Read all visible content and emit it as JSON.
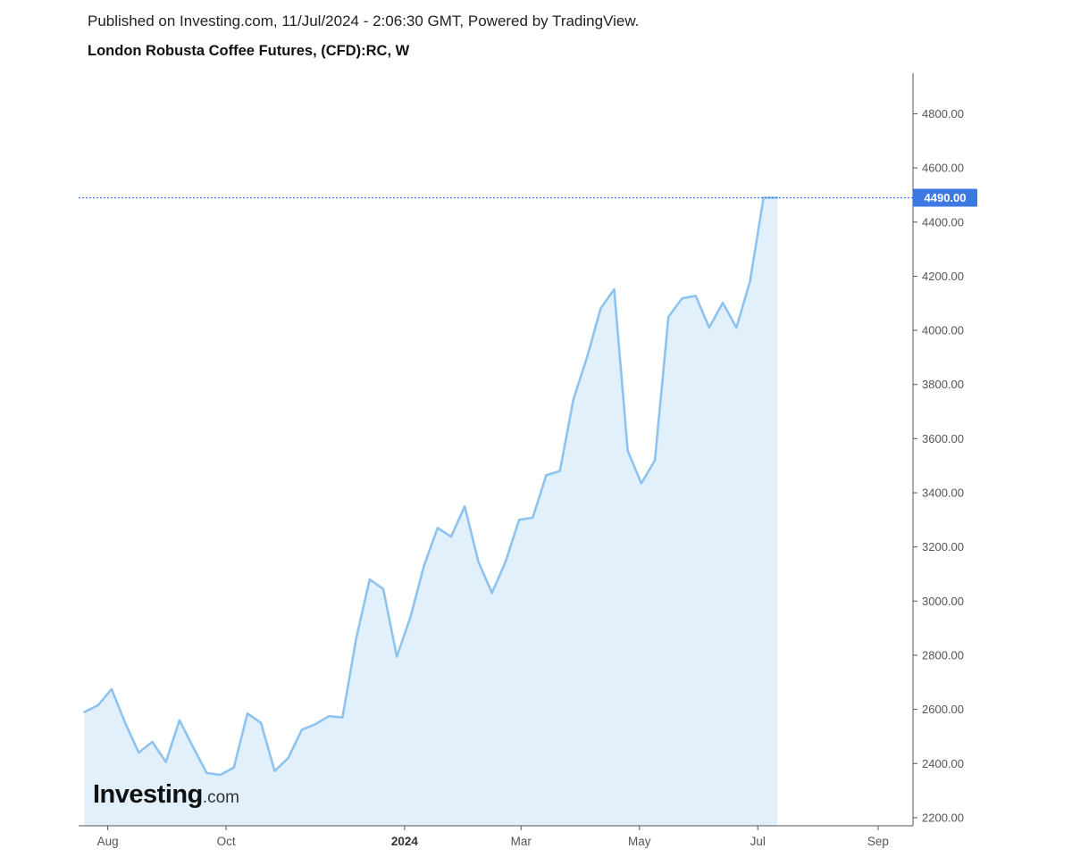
{
  "header": {
    "published": "Published on Investing.com, 11/Jul/2024 - 2:06:30 GMT, Powered by TradingView.",
    "title": "London Robusta Coffee Futures, (CFD):RC, W"
  },
  "logo": {
    "main": "Investing",
    "suffix": ".com"
  },
  "colors": {
    "line": "#8fc3ef",
    "fill": "#e1f0fa",
    "last_price_bg": "#3d78e3",
    "last_price_line": "#3d78e3",
    "axis": "#555555"
  },
  "chart_data": {
    "type": "area",
    "title": "London Robusta Coffee Futures, (CFD):RC, W",
    "xlabel": "",
    "ylabel": "",
    "x_range": [
      "2023-07-17",
      "2024-09-19"
    ],
    "ylim": [
      2170,
      4950
    ],
    "y_ticks": [
      2200,
      2400,
      2600,
      2800,
      3000,
      3200,
      3400,
      3600,
      3800,
      4000,
      4200,
      4400,
      4600,
      4800
    ],
    "y_tick_labels": [
      "2200.00",
      "2400.00",
      "2600.00",
      "2800.00",
      "3000.00",
      "3200.00",
      "3400.00",
      "3600.00",
      "3800.00",
      "4000.00",
      "4200.00",
      "4400.00",
      "4600.00",
      "4800.00"
    ],
    "x_ticks": [
      {
        "label": "Aug",
        "date": "2023-08-01",
        "bold": false
      },
      {
        "label": "Oct",
        "date": "2023-10-01",
        "bold": false
      },
      {
        "label": "2024",
        "date": "2024-01-01",
        "bold": true
      },
      {
        "label": "Mar",
        "date": "2024-03-01",
        "bold": false
      },
      {
        "label": "May",
        "date": "2024-05-01",
        "bold": false
      },
      {
        "label": "Jul",
        "date": "2024-07-01",
        "bold": false
      },
      {
        "label": "Sep",
        "date": "2024-09-01",
        "bold": false
      }
    ],
    "last_value": 4490,
    "last_value_label": "4490.00",
    "grid": false,
    "series": [
      {
        "dates": [
          "2023-07-20",
          "2023-07-27",
          "2023-08-03",
          "2023-08-10",
          "2023-08-17",
          "2023-08-24",
          "2023-08-31",
          "2023-09-07",
          "2023-09-14",
          "2023-09-21",
          "2023-09-28",
          "2023-10-05",
          "2023-10-12",
          "2023-10-19",
          "2023-10-26",
          "2023-11-02",
          "2023-11-09",
          "2023-11-16",
          "2023-11-23",
          "2023-11-30",
          "2023-12-07",
          "2023-12-14",
          "2023-12-21",
          "2023-12-28",
          "2024-01-04",
          "2024-01-11",
          "2024-01-18",
          "2024-01-25",
          "2024-02-01",
          "2024-02-08",
          "2024-02-15",
          "2024-02-22",
          "2024-02-29",
          "2024-03-07",
          "2024-03-14",
          "2024-03-21",
          "2024-03-28",
          "2024-04-04",
          "2024-04-11",
          "2024-04-18",
          "2024-04-25",
          "2024-05-02",
          "2024-05-09",
          "2024-05-16",
          "2024-05-23",
          "2024-05-30",
          "2024-06-06",
          "2024-06-13",
          "2024-06-20",
          "2024-06-27",
          "2024-07-04",
          "2024-07-11"
        ],
        "values": [
          2590,
          2615,
          2675,
          2550,
          2440,
          2480,
          2405,
          2560,
          2460,
          2365,
          2358,
          2385,
          2585,
          2550,
          2372,
          2420,
          2525,
          2545,
          2575,
          2570,
          2860,
          3080,
          3045,
          2795,
          2940,
          3130,
          3270,
          3238,
          3350,
          3145,
          3030,
          3145,
          3300,
          3308,
          3465,
          3480,
          3745,
          3900,
          4080,
          4152,
          3555,
          3435,
          3520,
          4050,
          4118,
          4128,
          4010,
          4102,
          4010,
          4180,
          4490,
          4490
        ]
      }
    ]
  }
}
